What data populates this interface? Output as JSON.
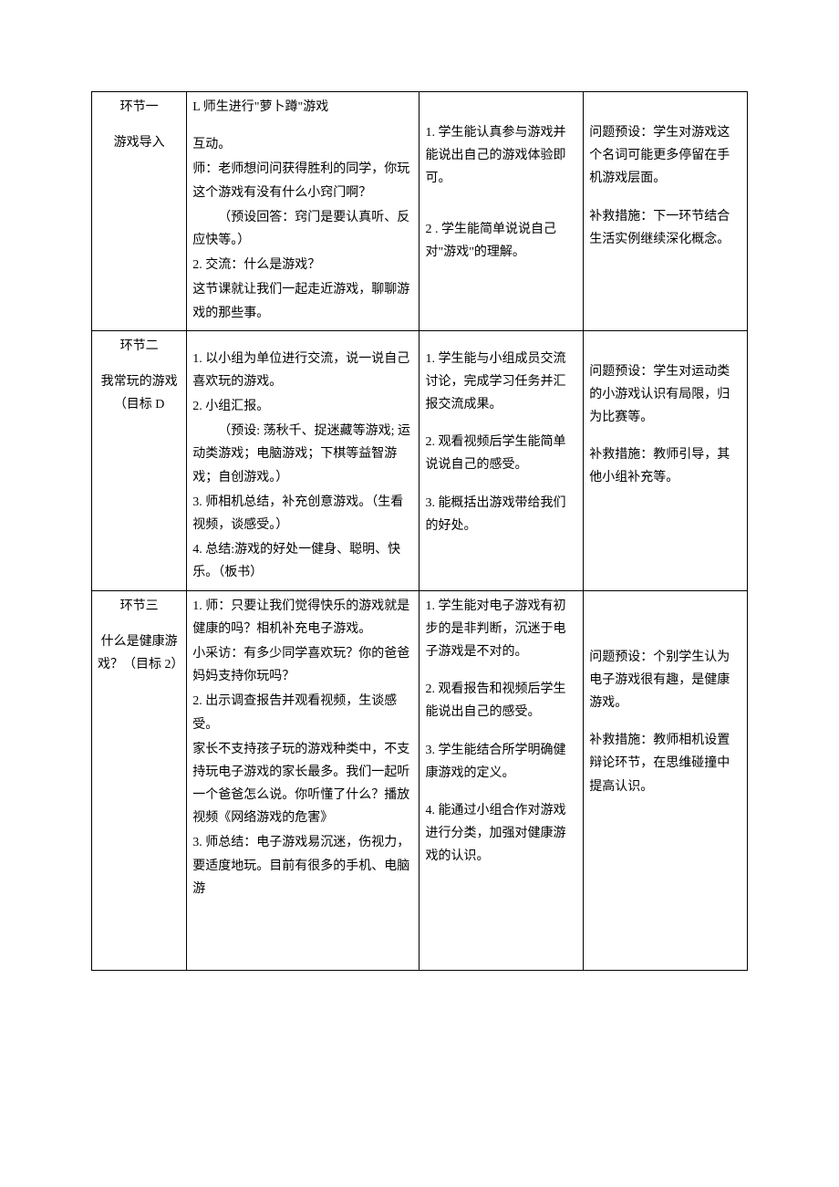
{
  "table": {
    "columns": [
      "col1",
      "col2",
      "col3",
      "col4"
    ],
    "col_widths_pct": [
      14.5,
      35.5,
      25,
      25
    ],
    "border_color": "#000000",
    "background_color": "#ffffff",
    "font_family": "SimSun",
    "font_size_pt": 10.5,
    "line_height": 1.8,
    "rows": [
      {
        "stage_title": "环节一",
        "stage_sub": "游戏导入",
        "col2_lines": [
          {
            "t": "L 师生进行\"萝卜蹲\"游戏"
          },
          {
            "t": ""
          },
          {
            "t": "互动。"
          },
          {
            "t": "师：老师想问问获得胜利的同学，你玩这个游戏有没有什么小窍门啊？"
          },
          {
            "t": "（预设回答：窍门是要认真听、反应快等。）",
            "indent": true
          },
          {
            "t": "2. 交流：什么是游戏？"
          },
          {
            "t": "这节课就让我们一起走近游戏，聊聊游戏的那些事。"
          }
        ],
        "col3_lines": [
          {
            "t": ""
          },
          {
            "t": ""
          },
          {
            "t": "1. 学生能认真参与游戏并能说出自己的游戏体验即可。"
          },
          {
            "t": ""
          },
          {
            "t": ""
          },
          {
            "t": "2 . 学生能简单说说自己对\"游戏\"的理解。"
          }
        ],
        "col4_lines": [
          {
            "t": ""
          },
          {
            "t": ""
          },
          {
            "t": "问题预设：学生对游戏这个名词可能更多停留在手机游戏层面。"
          },
          {
            "t": ""
          },
          {
            "t": "补救措施：下一环节结合生活实例继续深化概念。"
          }
        ]
      },
      {
        "stage_title": "环节二",
        "stage_sub": "我常玩的游戏（目标 D",
        "col2_lines": [
          {
            "t": ""
          },
          {
            "t": "1. 以小组为单位进行交流，说一说自己喜欢玩的游戏。"
          },
          {
            "t": "2. 小组汇报。"
          },
          {
            "t": "（预设: 荡秋千、捉迷藏等游戏; 运动类游戏；电脑游戏；下棋等益智游戏；自创游戏。）",
            "indent": true
          },
          {
            "t": "3. 师相机总结，补充创意游戏。（生看视频，谈感受。）"
          },
          {
            "t": "4. 总结:游戏的好处一健身、聪明、快乐。（板书）"
          }
        ],
        "col3_lines": [
          {
            "t": ""
          },
          {
            "t": "1. 学生能与小组成员交流讨论，完成学习任务并汇报交流成果。"
          },
          {
            "t": ""
          },
          {
            "t": "2. 观看视频后学生能简单说说自己的感受。"
          },
          {
            "t": ""
          },
          {
            "t": "3. 能概括出游戏带给我们的好处。"
          }
        ],
        "col4_lines": [
          {
            "t": ""
          },
          {
            "t": ""
          },
          {
            "t": "问题预设：学生对运动类的小游戏认识有局限，归为比赛等。"
          },
          {
            "t": ""
          },
          {
            "t": "补救措施：教师引导，其他小组补充等。"
          }
        ]
      },
      {
        "stage_title": "环节三",
        "stage_sub": "什么是健康游戏？（目标 2）",
        "col2_lines": [
          {
            "t": "1. 师：只要让我们觉得快乐的游戏就是健康的吗？相机补充电子游戏。"
          },
          {
            "t": "小采访：有多少同学喜欢玩？你的爸爸妈妈支持你玩吗？"
          },
          {
            "t": "2. 出示调查报告并观看视频，生谈感受。"
          },
          {
            "t": "家长不支持孩子玩的游戏种类中，不支持玩电子游戏的家长最多。我们一起听一个爸爸怎么说。你听懂了什么？播放视频《网络游戏的危害》"
          },
          {
            "t": "3. 师总结：电子游戏易沉迷，伤视力，要适度地玩。目前有很多的手机、电脑游"
          }
        ],
        "col3_lines": [
          {
            "t": "1. 学生能对电子游戏有初步的是非判断，沉迷于电子游戏是不对的。"
          },
          {
            "t": ""
          },
          {
            "t": "2. 观看报告和视频后学生能说出自己的感受。"
          },
          {
            "t": ""
          },
          {
            "t": "3. 学生能结合所学明确健康游戏的定义。"
          },
          {
            "t": ""
          },
          {
            "t": "4. 能通过小组合作对游戏进行分类，加强对健康游戏的认识。"
          }
        ],
        "col4_lines": [
          {
            "t": ""
          },
          {
            "t": ""
          },
          {
            "t": ""
          },
          {
            "t": ""
          },
          {
            "t": "问题预设：个别学生认为电子游戏很有趣，是健康游戏。"
          },
          {
            "t": ""
          },
          {
            "t": "补救措施：教师相机设置辩论环节，在思维碰撞中提高认识。"
          }
        ],
        "bottom_pad": true
      }
    ]
  }
}
